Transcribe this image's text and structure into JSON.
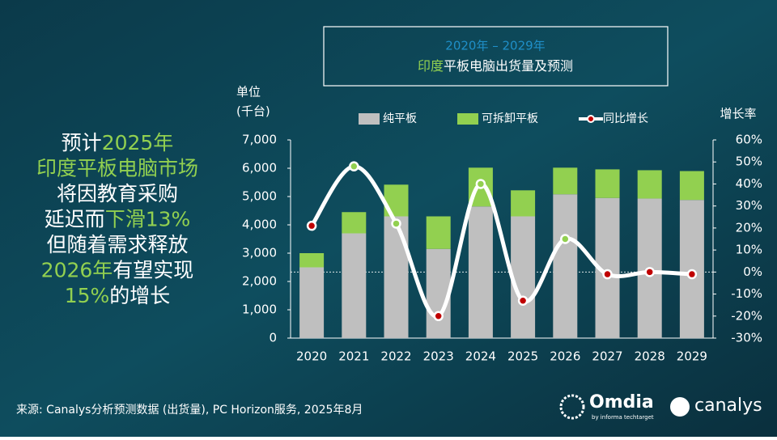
{
  "chart_data": {
    "type": "bar",
    "stacked": true,
    "title": "2020年 – 2029年",
    "subtitle": [
      {
        "text": "印度",
        "highlight": true
      },
      {
        "text": "平板电脑出货量及预测",
        "highlight": false
      }
    ],
    "ylabel": [
      "单位",
      "(千台)"
    ],
    "y2label": "增长率",
    "categories": [
      "2020",
      "2021",
      "2022",
      "2023",
      "2024",
      "2025",
      "2026",
      "2027",
      "2028",
      "2029"
    ],
    "series": [
      {
        "name": "纯平板",
        "type": "bar",
        "color": "#bfbfbf",
        "values": [
          2500,
          3700,
          4300,
          3150,
          4650,
          4300,
          5080,
          4950,
          4930,
          4880
        ]
      },
      {
        "name": "可拆卸平板",
        "type": "bar",
        "color": "#92d050",
        "values": [
          500,
          750,
          1120,
          1150,
          1370,
          920,
          940,
          1010,
          1000,
          1020
        ]
      },
      {
        "name": "同比增长",
        "type": "line",
        "axis": "y2",
        "color": "#ffffff",
        "values": [
          21,
          48,
          22,
          -20,
          40,
          -13,
          15,
          -1,
          0,
          -1
        ],
        "marker_colors": [
          "#c00000",
          "#92d050",
          "#92d050",
          "#c00000",
          "#92d050",
          "#c00000",
          "#92d050",
          "#c00000",
          "#c00000",
          "#c00000"
        ]
      }
    ],
    "ylim": [
      0,
      7000
    ],
    "yticks": [
      0,
      {
        "value": 1000,
        "label": "1,000"
      },
      {
        "value": 2000,
        "label": "2,000"
      },
      {
        "value": 3000,
        "label": "3,000"
      },
      {
        "value": 4000,
        "label": "4,000"
      },
      {
        "value": 5000,
        "label": "5,000"
      },
      {
        "value": 6000,
        "label": "6,000"
      },
      {
        "value": 7000,
        "label": "7,000"
      }
    ],
    "y2lim": [
      -30,
      60
    ],
    "y2ticks": [
      {
        "value": -30,
        "label": "-30%"
      },
      {
        "value": -20,
        "label": "-20%"
      },
      {
        "value": -10,
        "label": "-10%"
      },
      {
        "value": 0,
        "label": "0%"
      },
      {
        "value": 10,
        "label": "10%"
      },
      {
        "value": 20,
        "label": "20%"
      },
      {
        "value": 30,
        "label": "30%"
      },
      {
        "value": 40,
        "label": "40%"
      },
      {
        "value": 50,
        "label": "50%"
      },
      {
        "value": 60,
        "label": "60%"
      }
    ],
    "zero_line": true
  },
  "headline": [
    [
      {
        "text": "预计",
        "highlight": false
      },
      {
        "text": "2025年",
        "highlight": true
      }
    ],
    [
      {
        "text": "印度平板电脑市场",
        "highlight": true
      }
    ],
    [
      {
        "text": "将因教育采购",
        "highlight": false
      }
    ],
    [
      {
        "text": "延迟而",
        "highlight": false
      },
      {
        "text": "下滑13%",
        "highlight": true
      }
    ],
    [
      {
        "text": "但随着需求释放",
        "highlight": false
      }
    ],
    [
      {
        "text": "2026年",
        "highlight": true
      },
      {
        "text": "有望实现",
        "highlight": false
      }
    ],
    [
      {
        "text": "15%",
        "highlight": true
      },
      {
        "text": "的增长",
        "highlight": false
      }
    ]
  ],
  "source": "来源: Canalys分析预测数据 (出货量), PC Horizon服务, 2025年8月",
  "logos": {
    "omdia": "Omdia",
    "omdia_sub": "by informa techtarget",
    "canalys": "canalys"
  }
}
